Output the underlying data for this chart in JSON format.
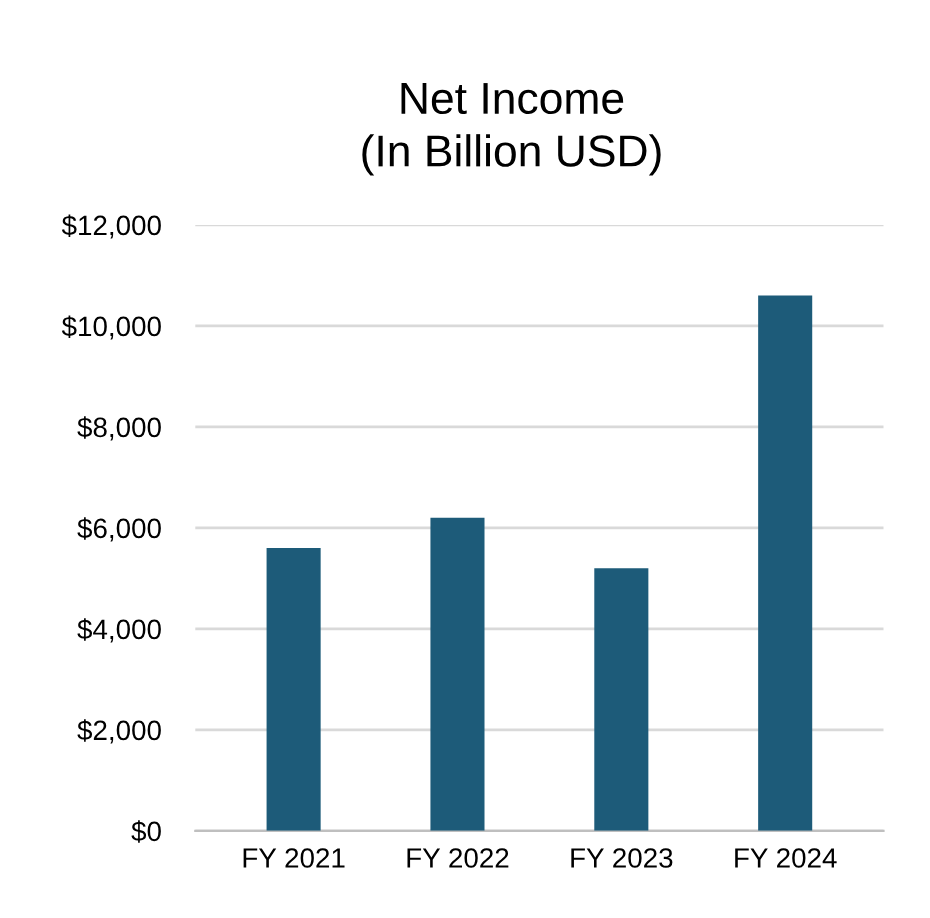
{
  "chart_data": {
    "type": "bar",
    "title": "Net Income\n(In Billion USD)",
    "categories": [
      "FY 2021",
      "FY 2022",
      "FY 2023",
      "FY 2024"
    ],
    "values": [
      5600,
      6200,
      5200,
      10600
    ],
    "color": "#1d5b79",
    "ylim": [
      0,
      12000
    ],
    "yticks": [
      {
        "value": 0,
        "label": "$0"
      },
      {
        "value": 2000,
        "label": "$2,000"
      },
      {
        "value": 4000,
        "label": "$4,000"
      },
      {
        "value": 6000,
        "label": "$6,000"
      },
      {
        "value": 8000,
        "label": "$8,000"
      },
      {
        "value": 10000,
        "label": "$10,000"
      },
      {
        "value": 12000,
        "label": "$12,000"
      }
    ],
    "grid": "y"
  }
}
